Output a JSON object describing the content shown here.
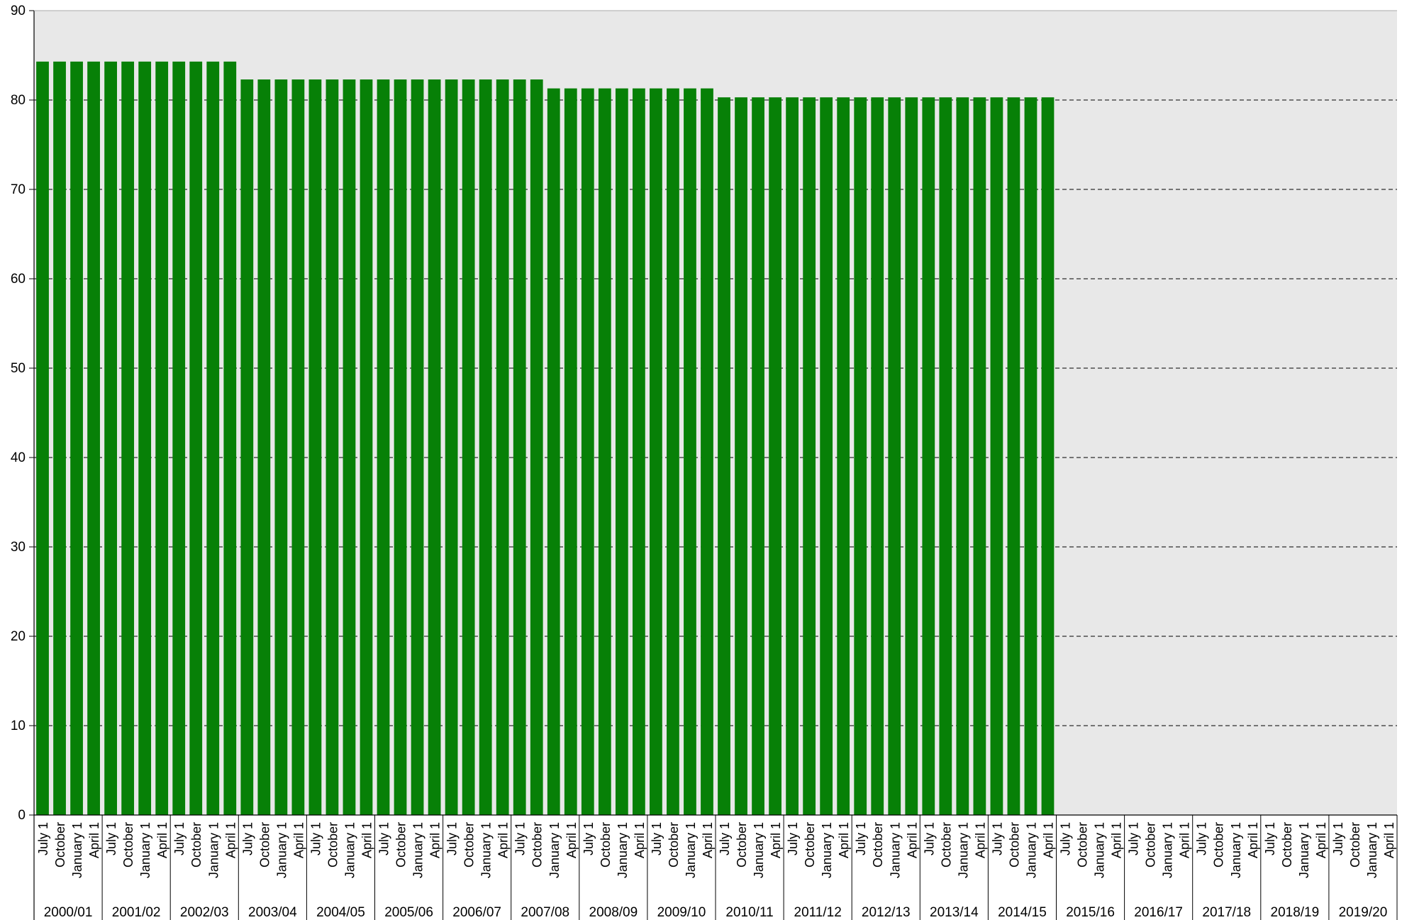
{
  "chart_data": {
    "type": "bar",
    "title": "",
    "xlabel": "",
    "ylabel": "",
    "ylim": [
      0,
      90
    ],
    "yticks": [
      0,
      10,
      20,
      30,
      40,
      50,
      60,
      70,
      80,
      90
    ],
    "grid": "horizontal dashed",
    "legend": "none",
    "colors": {
      "bar": "#078007",
      "plot_background": "#e8e8e8",
      "gridline": "#000000",
      "axis": "#000000"
    },
    "years": [
      "2000/01",
      "2001/02",
      "2002/03",
      "2003/04",
      "2004/05",
      "2005/06",
      "2006/07",
      "2007/08",
      "2008/09",
      "2009/10",
      "2010/11",
      "2011/12",
      "2012/13",
      "2013/14",
      "2014/15",
      "2015/16",
      "2016/17",
      "2017/18",
      "2018/19",
      "2019/20"
    ],
    "quarters": [
      "July 1",
      "October",
      "January 1",
      "April 1"
    ],
    "series": [
      {
        "values": [
          84.3,
          84.3,
          84.3,
          84.3,
          84.3,
          84.3,
          84.3,
          84.3,
          84.3,
          84.3,
          84.3,
          84.3,
          82.3,
          82.3,
          82.3,
          82.3,
          82.3,
          82.3,
          82.3,
          82.3,
          82.3,
          82.3,
          82.3,
          82.3,
          82.3,
          82.3,
          82.3,
          82.3,
          82.3,
          82.3,
          81.3,
          81.3,
          81.3,
          81.3,
          81.3,
          81.3,
          81.3,
          81.3,
          81.3,
          81.3,
          80.3,
          80.3,
          80.3,
          80.3,
          80.3,
          80.3,
          80.3,
          80.3,
          80.3,
          80.3,
          80.3,
          80.3,
          80.3,
          80.3,
          80.3,
          80.3,
          80.3,
          80.3,
          80.3,
          80.3,
          null,
          null,
          null,
          null,
          null,
          null,
          null,
          null,
          null,
          null,
          null,
          null,
          null,
          null,
          null,
          null,
          null,
          null,
          null,
          null
        ]
      }
    ]
  }
}
